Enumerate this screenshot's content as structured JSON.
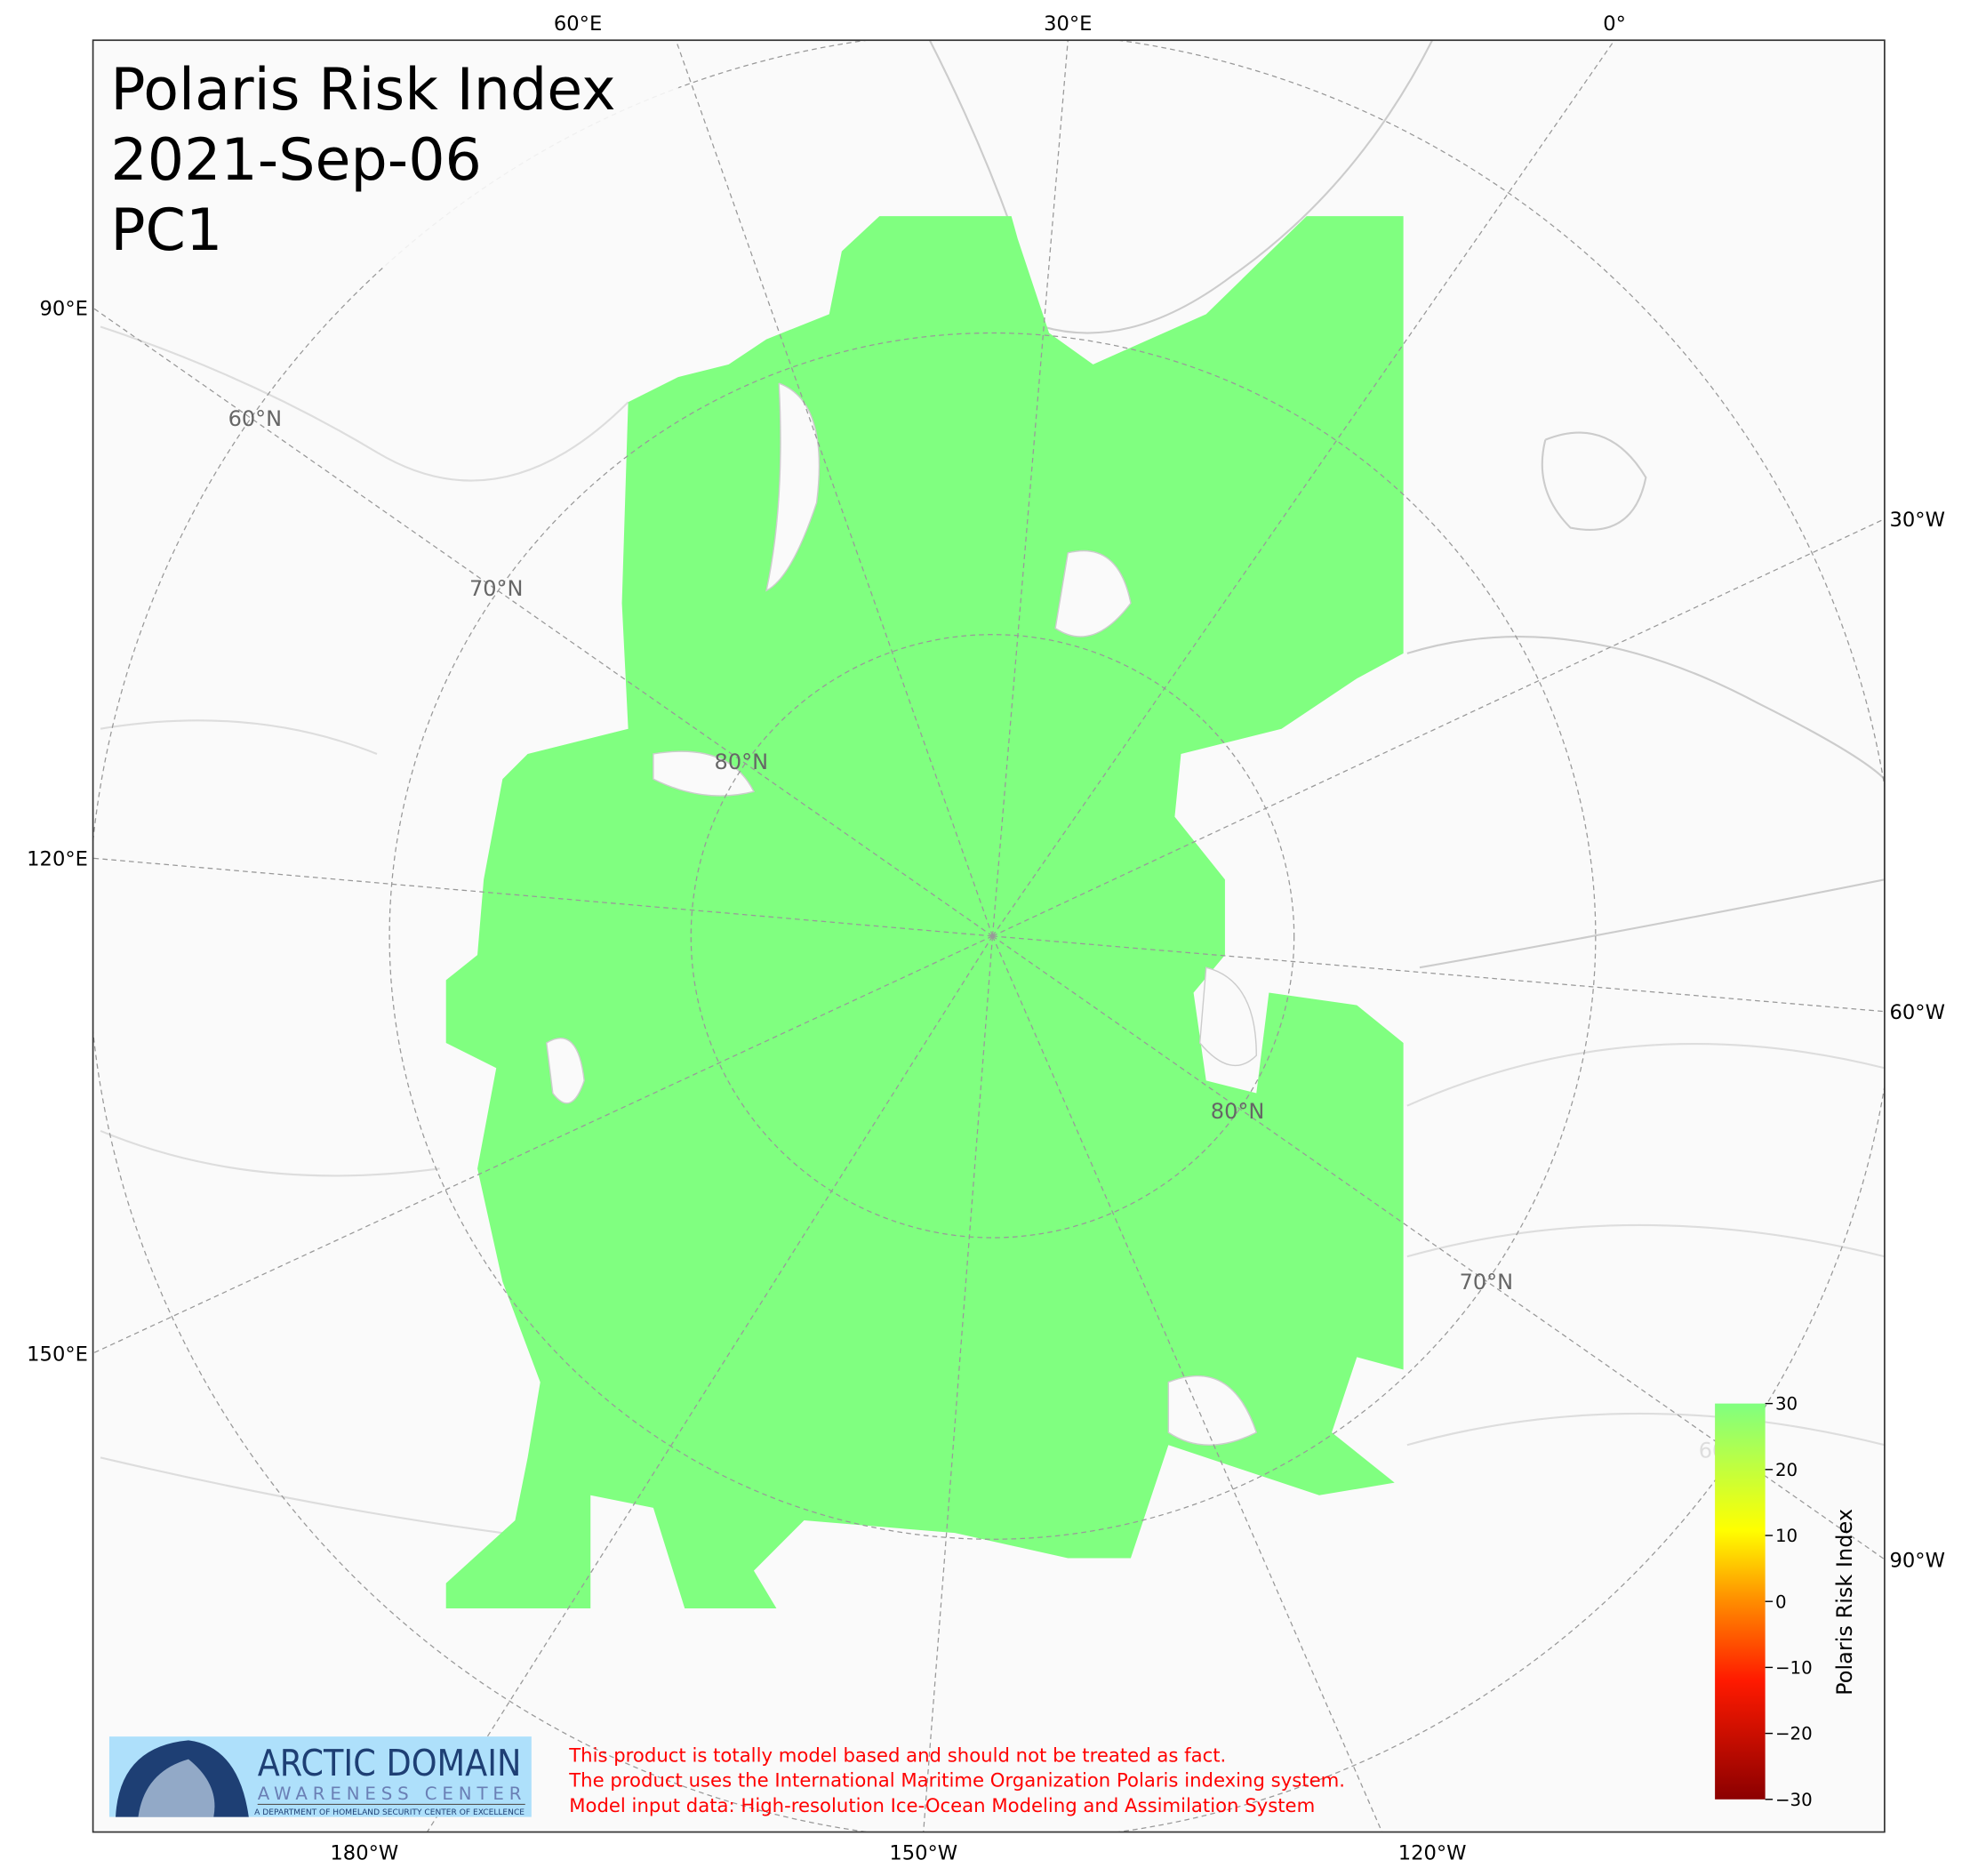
{
  "title": {
    "line1": "Polaris Risk Index",
    "line2": "2021-Sep-06",
    "line3": "PC1"
  },
  "longitude_labels": {
    "top": [
      "60°E",
      "30°E",
      "0°"
    ],
    "left": [
      "90°E",
      "120°E",
      "150°E"
    ],
    "right": [
      "30°W",
      "60°W",
      "90°W"
    ],
    "bottom": [
      "180°W",
      "150°W",
      "120°W"
    ]
  },
  "latitude_labels": [
    "60°N",
    "70°N",
    "80°N",
    "80°N",
    "70°N",
    "60°N"
  ],
  "colorbar": {
    "label": "Polaris Risk Index",
    "ticks": [
      "30",
      "20",
      "10",
      "0",
      "−10",
      "−20",
      "−30"
    ],
    "range": [
      -30,
      30
    ],
    "colors": [
      "#8b0000",
      "#ff1a00",
      "#ff8c00",
      "#ffff00",
      "#80ff80"
    ]
  },
  "map": {
    "risk_fill_color": "#80ff80",
    "displayed_value": 30
  },
  "logo": {
    "line1": "ARCTIC DOMAIN",
    "line2": "AWARENESS CENTER",
    "line3": "A DEPARTMENT OF HOMELAND SECURITY CENTER OF EXCELLENCE"
  },
  "disclaimer": [
    "This product is totally model based and should not be treated as fact.",
    "The product uses the International Maritime Organization Polaris indexing system.",
    "Model input data: High-resolution Ice-Ocean Modeling and Assimilation System"
  ]
}
